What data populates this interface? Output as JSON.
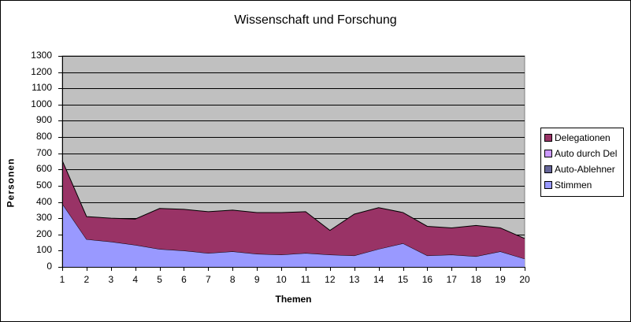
{
  "chart_data": {
    "type": "area",
    "stacked": true,
    "title": "Wissenschaft und Forschung",
    "xlabel": "Themen",
    "ylabel": "Personen",
    "ylim": [
      0,
      1300
    ],
    "yticks": [
      0,
      100,
      200,
      300,
      400,
      500,
      600,
      700,
      800,
      900,
      1000,
      1100,
      1200,
      1300
    ],
    "categories": [
      "1",
      "2",
      "3",
      "4",
      "5",
      "6",
      "7",
      "8",
      "9",
      "10",
      "11",
      "12",
      "13",
      "14",
      "15",
      "16",
      "17",
      "18",
      "19",
      "20"
    ],
    "grid": true,
    "legend_position": "right",
    "series": [
      {
        "name": "Stimmen",
        "color": "#9999FF",
        "values": [
          390,
          170,
          155,
          135,
          110,
          100,
          85,
          95,
          80,
          75,
          85,
          75,
          70,
          110,
          145,
          70,
          75,
          65,
          95,
          50
        ]
      },
      {
        "name": "Auto-Ablehner",
        "color": "#666699",
        "values": [
          0,
          0,
          0,
          0,
          0,
          0,
          0,
          0,
          0,
          0,
          0,
          0,
          0,
          0,
          0,
          0,
          0,
          0,
          0,
          0
        ]
      },
      {
        "name": "Auto durch Del",
        "color": "#CC99FF",
        "values": [
          0,
          0,
          0,
          0,
          0,
          0,
          0,
          0,
          0,
          0,
          0,
          0,
          0,
          0,
          0,
          0,
          0,
          0,
          0,
          0
        ]
      },
      {
        "name": "Delegationen",
        "color": "#993366",
        "values": [
          265,
          140,
          145,
          160,
          250,
          255,
          255,
          255,
          255,
          260,
          255,
          150,
          255,
          255,
          190,
          180,
          165,
          190,
          145,
          125
        ]
      }
    ]
  },
  "legend": {
    "items": [
      {
        "label": "Delegationen",
        "color": "#993366"
      },
      {
        "label": "Auto durch Del",
        "color": "#CC99FF"
      },
      {
        "label": "Auto-Ablehner",
        "color": "#666699"
      },
      {
        "label": "Stimmen",
        "color": "#9999FF"
      }
    ]
  },
  "colors": {
    "plot_bg": "#C0C0C0",
    "gridline": "#000000"
  }
}
